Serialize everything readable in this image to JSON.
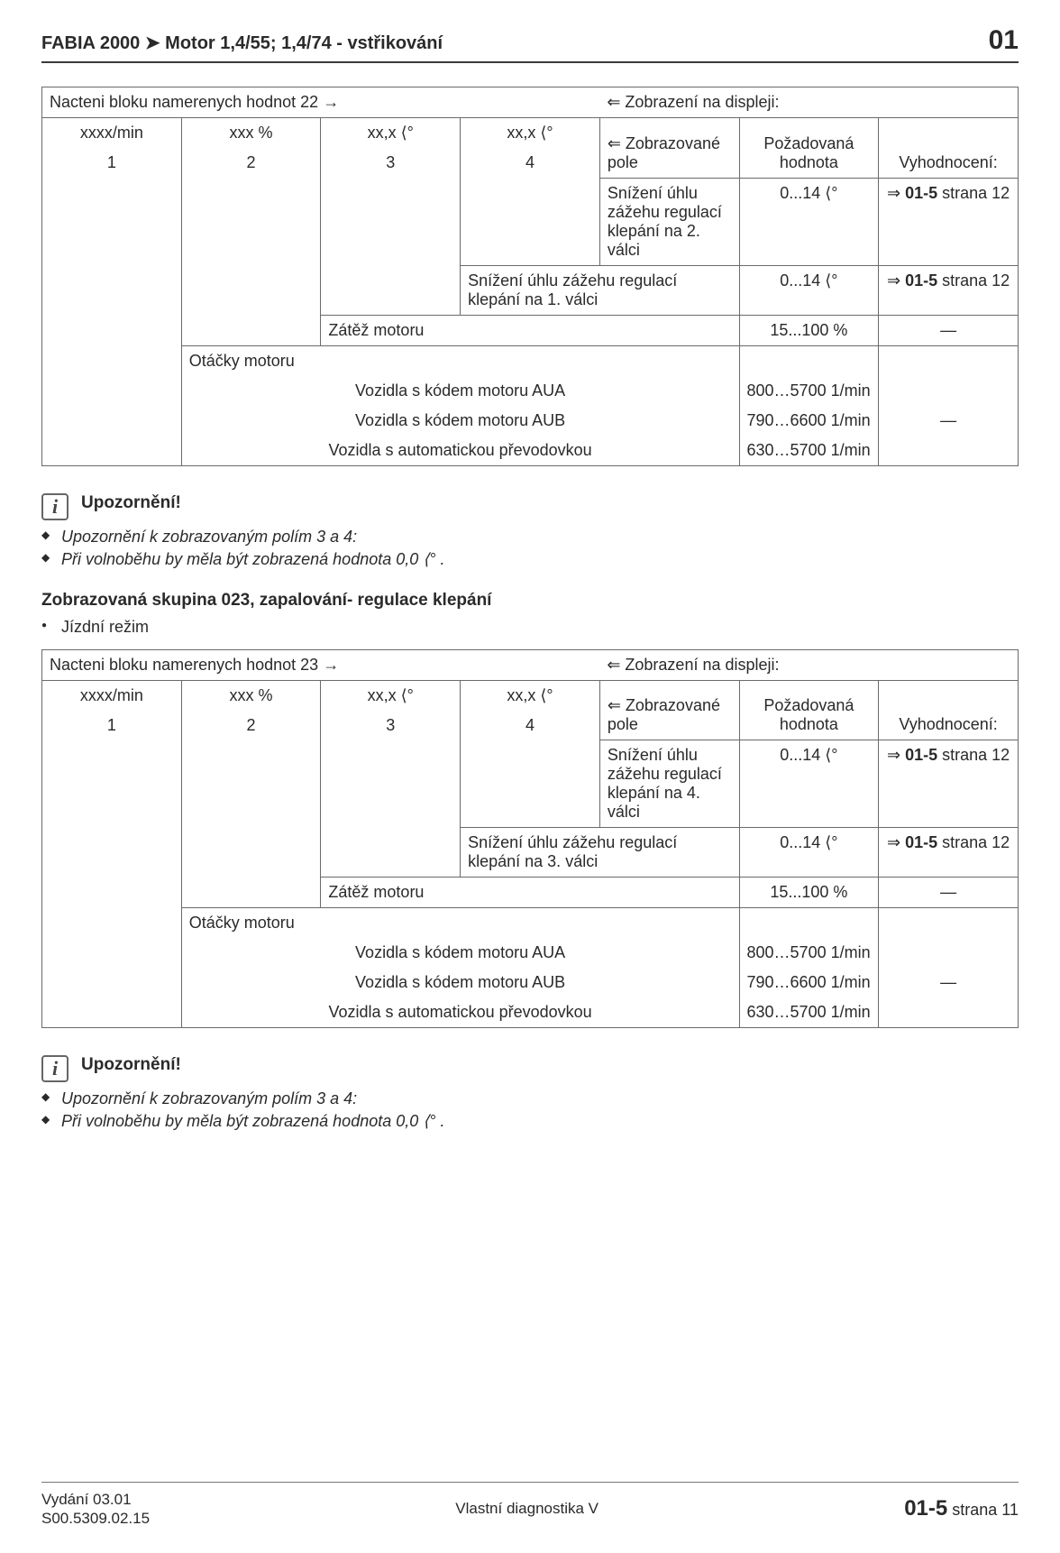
{
  "header": {
    "title": "FABIA 2000 ➤  Motor 1,4/55; 1,4/74 - vstřikování",
    "section": "01"
  },
  "table22": {
    "title_left": "Nacteni bloku namerenych hodnot 22",
    "title_right": "Zobrazení na displeji:",
    "unit_cols": [
      "xxxx/min",
      "xxx %",
      "xx,x ⟨°",
      "xx,x ⟨°"
    ],
    "num_cols": [
      "1",
      "2",
      "3",
      "4"
    ],
    "hdr5": "Zobrazované pole",
    "hdr6": "Požadovaná hodnota",
    "hdr7": "Vyhodnocení:",
    "r1c5": "Snížení úhlu záže­hu regulací klepání na 2. válci",
    "r1c6": "0...14 ⟨°",
    "r1c7": "01-5 strana 12",
    "r2c45": "Snížení úhlu zážehu regulací klepání na 1. válci",
    "r2c6": "0...14 ⟨°",
    "r2c7": "01-5 strana 12",
    "r3c5": "Zátěž motoru",
    "r3c6": "15...100 %",
    "r3c7": "—",
    "r4label": "Otáčky motoru",
    "r5c5": "Vozidla s kódem motoru AUA",
    "r5c6": "800…5700 1/min",
    "r6c5": "Vozidla s kódem motoru AUB",
    "r6c6": "790…6600 1/min",
    "r6c7": "—",
    "r7c5": "Vozidla s automatickou převodovkou",
    "r7c6": "630…5700 1/min"
  },
  "note": {
    "title": "Upozornění!",
    "li1": "Upozornění k zobrazovaným polím 3 a 4:",
    "li2": "Při volnoběhu by měla být zobrazená hodnota 0,0 ⟨° ."
  },
  "group23": {
    "heading": "Zobrazovaná skupina 023, zapalování- regulace klepání",
    "bullet": "Jízdní režim"
  },
  "table23": {
    "title_left": "Nacteni bloku namerenych hodnot 23",
    "title_right": "Zobrazení na displeji:",
    "unit_cols": [
      "xxxx/min",
      "xxx %",
      "xx,x ⟨°",
      "xx,x ⟨°"
    ],
    "num_cols": [
      "1",
      "2",
      "3",
      "4"
    ],
    "hdr5": "Zobrazované pole",
    "hdr6": "Požadovaná hodnota",
    "hdr7": "Vyhodnocení:",
    "r1c5": "Snížení úhlu zážehu regulací klepání na 4. válci",
    "r1c6": "0...14 ⟨°",
    "r1c7": "01-5 strana 12",
    "r2c45": "Snížení úhlu zážehu regulací klepání na 3. válci",
    "r2c6": "0...14 ⟨°",
    "r2c7": "01-5 strana 12",
    "r3c5": "Zátěž motoru",
    "r3c6": "15...100 %",
    "r3c7": "—",
    "r4label": "Otáčky motoru",
    "r5c5": "Vozidla s kódem motoru AUA",
    "r5c6": "800…5700 1/min",
    "r6c5": "Vozidla s kódem motoru AUB",
    "r6c6": "790…6600 1/min",
    "r6c7": "—",
    "r7c5": "Vozidla s automatickou převodovkou",
    "r7c6": "630…5700 1/min"
  },
  "footer": {
    "edition": "Vydání 03.01",
    "code": "S00.5309.02.15",
    "center": "Vlastní diagnostika V",
    "right_big": "01-5",
    "right_small": "strana 11"
  }
}
